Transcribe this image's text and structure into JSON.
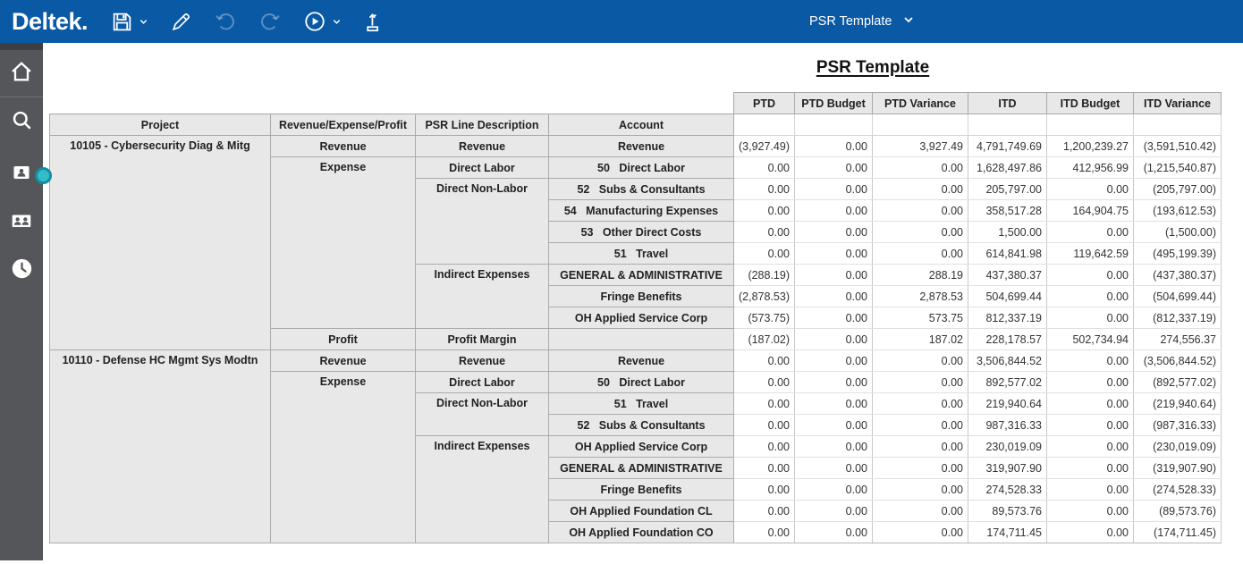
{
  "topbar": {
    "logo": "Deltek.",
    "template_selector": "PSR Template",
    "toolbar_icons": [
      "floppy-save",
      "pencil-edit",
      "undo-arrow",
      "redo-arrow",
      "play-run",
      "export-upload"
    ]
  },
  "sidebar": {
    "nav_icons": [
      "home",
      "search",
      "employee-badge",
      "people",
      "clock"
    ]
  },
  "colors": {
    "topbar_blue": "#0a59a5",
    "sidebar_gray": "#54565a",
    "handle_teal": "#35bcc9",
    "table_header_bg": "#e8e8e8"
  },
  "report": {
    "title": "PSR Template"
  },
  "table": {
    "value_headers": [
      "PTD",
      "PTD Budget",
      "PTD Variance",
      "ITD",
      "ITD Budget",
      "ITD Variance"
    ],
    "label_headers": [
      "Project",
      "Revenue/Expense/Profit",
      "PSR Line Description",
      "Account"
    ],
    "rows": [
      {
        "labels": [
          {
            "text": "10105 - Cybersecurity Diag & Mitg",
            "span": 10
          },
          {
            "text": "Revenue",
            "span": 1
          },
          {
            "text": "Revenue",
            "span": 1
          },
          {
            "text": "Revenue",
            "span": 1
          }
        ],
        "values": [
          "(3,927.49)",
          "0.00",
          "3,927.49",
          "4,791,749.69",
          "1,200,239.27",
          "(3,591,510.42)"
        ]
      },
      {
        "labels": [
          {
            "text": "Expense",
            "span": 8
          },
          {
            "text": "Direct Labor",
            "span": 1
          },
          {
            "text": "50   Direct Labor",
            "span": 1
          }
        ],
        "values": [
          "0.00",
          "0.00",
          "0.00",
          "1,628,497.86",
          "412,956.99",
          "(1,215,540.87)"
        ]
      },
      {
        "labels": [
          {
            "text": "Direct Non-Labor",
            "span": 4
          },
          {
            "text": "52   Subs & Consultants",
            "span": 1
          }
        ],
        "values": [
          "0.00",
          "0.00",
          "0.00",
          "205,797.00",
          "0.00",
          "(205,797.00)"
        ]
      },
      {
        "labels": [
          {
            "text": "54   Manufacturing Expenses",
            "span": 1
          }
        ],
        "values": [
          "0.00",
          "0.00",
          "0.00",
          "358,517.28",
          "164,904.75",
          "(193,612.53)"
        ]
      },
      {
        "labels": [
          {
            "text": "53   Other Direct Costs",
            "span": 1
          }
        ],
        "values": [
          "0.00",
          "0.00",
          "0.00",
          "1,500.00",
          "0.00",
          "(1,500.00)"
        ]
      },
      {
        "labels": [
          {
            "text": "51   Travel",
            "span": 1
          }
        ],
        "values": [
          "0.00",
          "0.00",
          "0.00",
          "614,841.98",
          "119,642.59",
          "(495,199.39)"
        ]
      },
      {
        "labels": [
          {
            "text": "Indirect Expenses",
            "span": 3
          },
          {
            "text": "GENERAL & ADMINISTRATIVE",
            "span": 1
          }
        ],
        "values": [
          "(288.19)",
          "0.00",
          "288.19",
          "437,380.37",
          "0.00",
          "(437,380.37)"
        ]
      },
      {
        "labels": [
          {
            "text": "Fringe Benefits",
            "span": 1
          }
        ],
        "values": [
          "(2,878.53)",
          "0.00",
          "2,878.53",
          "504,699.44",
          "0.00",
          "(504,699.44)"
        ]
      },
      {
        "labels": [
          {
            "text": "OH Applied Service Corp",
            "span": 1
          }
        ],
        "values": [
          "(573.75)",
          "0.00",
          "573.75",
          "812,337.19",
          "0.00",
          "(812,337.19)"
        ]
      },
      {
        "labels": [
          {
            "text": "Profit",
            "span": 1
          },
          {
            "text": "Profit Margin",
            "span": 1
          },
          {
            "text": "",
            "span": 1
          }
        ],
        "values": [
          "(187.02)",
          "0.00",
          "187.02",
          "228,178.57",
          "502,734.94",
          "274,556.37"
        ]
      },
      {
        "labels": [
          {
            "text": "10110 - Defense HC Mgmt Sys Modtn",
            "span": 9
          },
          {
            "text": "Revenue",
            "span": 1
          },
          {
            "text": "Revenue",
            "span": 1
          },
          {
            "text": "Revenue",
            "span": 1
          }
        ],
        "values": [
          "0.00",
          "0.00",
          "0.00",
          "3,506,844.52",
          "0.00",
          "(3,506,844.52)"
        ]
      },
      {
        "labels": [
          {
            "text": "Expense",
            "span": 8
          },
          {
            "text": "Direct Labor",
            "span": 1
          },
          {
            "text": "50   Direct Labor",
            "span": 1
          }
        ],
        "values": [
          "0.00",
          "0.00",
          "0.00",
          "892,577.02",
          "0.00",
          "(892,577.02)"
        ]
      },
      {
        "labels": [
          {
            "text": "Direct Non-Labor",
            "span": 2
          },
          {
            "text": "51   Travel",
            "span": 1
          }
        ],
        "values": [
          "0.00",
          "0.00",
          "0.00",
          "219,940.64",
          "0.00",
          "(219,940.64)"
        ]
      },
      {
        "labels": [
          {
            "text": "52   Subs & Consultants",
            "span": 1
          }
        ],
        "values": [
          "0.00",
          "0.00",
          "0.00",
          "987,316.33",
          "0.00",
          "(987,316.33)"
        ]
      },
      {
        "labels": [
          {
            "text": "Indirect Expenses",
            "span": 5
          },
          {
            "text": "OH Applied Service Corp",
            "span": 1
          }
        ],
        "values": [
          "0.00",
          "0.00",
          "0.00",
          "230,019.09",
          "0.00",
          "(230,019.09)"
        ]
      },
      {
        "labels": [
          {
            "text": "GENERAL & ADMINISTRATIVE",
            "span": 1
          }
        ],
        "values": [
          "0.00",
          "0.00",
          "0.00",
          "319,907.90",
          "0.00",
          "(319,907.90)"
        ]
      },
      {
        "labels": [
          {
            "text": "Fringe Benefits",
            "span": 1
          }
        ],
        "values": [
          "0.00",
          "0.00",
          "0.00",
          "274,528.33",
          "0.00",
          "(274,528.33)"
        ]
      },
      {
        "labels": [
          {
            "text": "OH Applied Foundation CL",
            "span": 1
          }
        ],
        "values": [
          "0.00",
          "0.00",
          "0.00",
          "89,573.76",
          "0.00",
          "(89,573.76)"
        ]
      },
      {
        "labels": [
          {
            "text": "OH Applied Foundation CO",
            "span": 1
          }
        ],
        "values": [
          "0.00",
          "0.00",
          "0.00",
          "174,711.45",
          "0.00",
          "(174,711.45)"
        ]
      }
    ]
  }
}
